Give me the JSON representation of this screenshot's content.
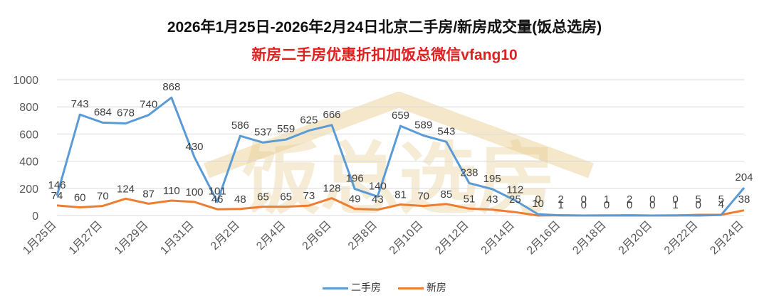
{
  "chart_data": {
    "type": "line",
    "title": "2026年1月25日-2026年2月24日北京二手房/新房成交量(饭总选房)",
    "subtitle": "新房二手房优惠折扣加饭总微信vfang10",
    "watermark": "饭总选房",
    "ylim": [
      0,
      1000
    ],
    "yticks": [
      0,
      200,
      400,
      600,
      800,
      1000
    ],
    "grid": true,
    "legend_position": "bottom",
    "x": [
      "1月25日",
      "1月26日",
      "1月27日",
      "1月28日",
      "1月29日",
      "1月30日",
      "1月31日",
      "2月1日",
      "2月2日",
      "2月3日",
      "2月4日",
      "2月5日",
      "2月6日",
      "2月7日",
      "2月8日",
      "2月9日",
      "2月10日",
      "2月11日",
      "2月12日",
      "2月13日",
      "2月14日",
      "2月15日",
      "2月16日",
      "2月17日",
      "2月18日",
      "2月19日",
      "2月20日",
      "2月21日",
      "2月22日",
      "2月23日",
      "2月24日"
    ],
    "xtick_labels": [
      "1月25日",
      "1月27日",
      "1月29日",
      "1月31日",
      "2月2日",
      "2月4日",
      "2月6日",
      "2月8日",
      "2月10日",
      "2月12日",
      "2月14日",
      "2月16日",
      "2月18日",
      "2月20日",
      "2月22日",
      "2月24日"
    ],
    "series": [
      {
        "name": "二手房",
        "color": "#5B9BD5",
        "values": [
          146,
          743,
          684,
          678,
          740,
          868,
          430,
          101,
          586,
          537,
          559,
          625,
          666,
          196,
          140,
          659,
          589,
          543,
          238,
          195,
          112,
          10,
          1,
          0,
          0,
          0,
          0,
          1,
          0,
          4,
          204
        ]
      },
      {
        "name": "新房",
        "color": "#ED7D31",
        "values": [
          74,
          60,
          70,
          124,
          87,
          110,
          100,
          46,
          48,
          65,
          65,
          73,
          128,
          49,
          43,
          81,
          70,
          85,
          51,
          43,
          25,
          0,
          2,
          0,
          1,
          2,
          0,
          0,
          5,
          5,
          38
        ]
      }
    ]
  },
  "colors": {
    "subtitle": "#E02020",
    "grid": "#D9D9D9",
    "axis_text": "#595959",
    "watermark": "#E6C98A"
  }
}
